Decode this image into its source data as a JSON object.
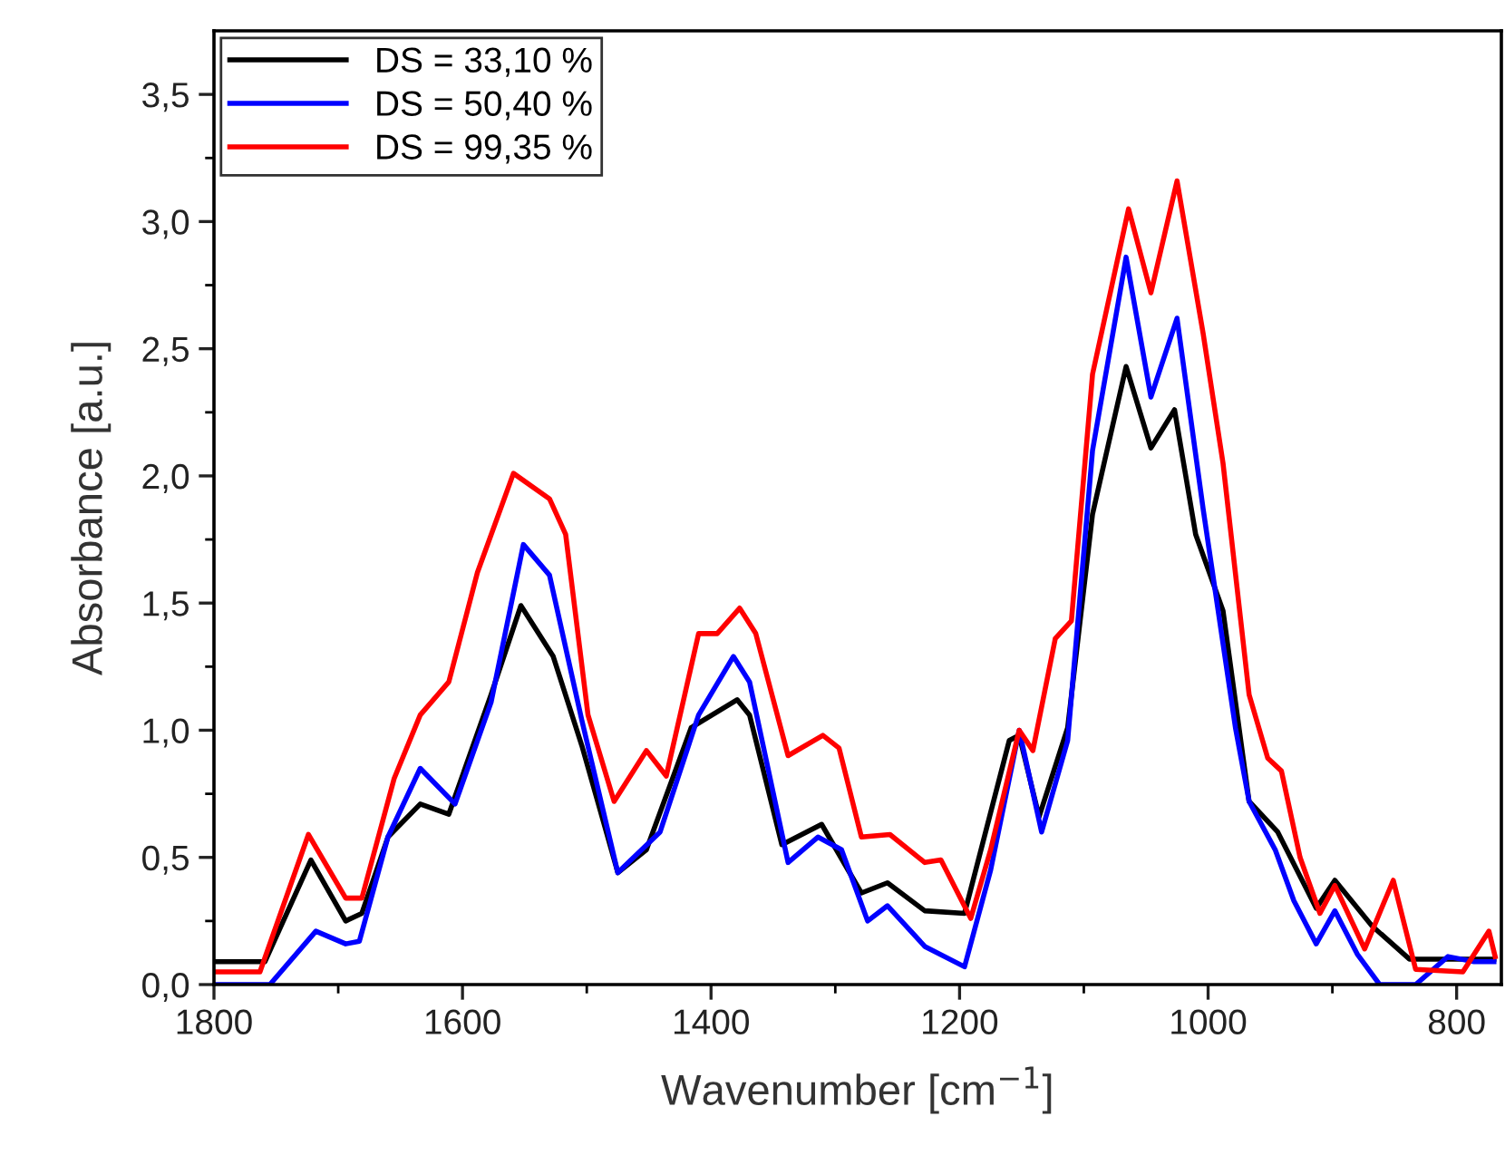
{
  "chart_data": {
    "type": "line",
    "xlabel": "Wavenumber [cm$^{−1}$]",
    "ylabel": "Absorbance [a.u.]",
    "xlim": [
      1800,
      764
    ],
    "xticks": [
      1800,
      1600,
      1400,
      1200,
      1000,
      800
    ],
    "ylim": [
      0,
      3.75
    ],
    "yticks": [
      {
        "value": 0,
        "label": "0,0"
      },
      {
        "value": 0.5,
        "label": "0,5"
      },
      {
        "value": 1,
        "label": "1,0"
      },
      {
        "value": 1.5,
        "label": "1,5"
      },
      {
        "value": 2,
        "label": "2,0"
      },
      {
        "value": 2.5,
        "label": "2,5"
      },
      {
        "value": 3,
        "label": "3,0"
      },
      {
        "value": 3.5,
        "label": "3,5"
      }
    ],
    "grid": false,
    "legend": "top left",
    "marker": "none",
    "line_style": "solid",
    "series": [
      {
        "name": "DS = 33,10 %",
        "color": "#000000",
        "x": [
          1800,
          1759,
          1722,
          1694,
          1681,
          1660,
          1634,
          1611,
          1577,
          1553,
          1527,
          1504,
          1475,
          1452,
          1416,
          1379,
          1369,
          1343,
          1311,
          1279,
          1258,
          1228,
          1196,
          1160,
          1152,
          1136,
          1113,
          1093,
          1066,
          1046,
          1027,
          1010,
          988,
          967,
          944,
          913,
          898,
          868,
          838,
          812,
          770
        ],
        "values": [
          0.09,
          0.09,
          0.49,
          0.25,
          0.28,
          0.58,
          0.71,
          0.67,
          1.14,
          1.49,
          1.29,
          0.94,
          0.44,
          0.53,
          1.01,
          1.12,
          1.06,
          0.55,
          0.63,
          0.36,
          0.4,
          0.29,
          0.28,
          0.96,
          0.98,
          0.66,
          1.01,
          1.85,
          2.43,
          2.11,
          2.26,
          1.77,
          1.47,
          0.72,
          0.6,
          0.3,
          0.41,
          0.23,
          0.1,
          0.1,
          0.1
        ]
      },
      {
        "name": "DS = 50,40 %",
        "color": "#0000ff",
        "x": [
          1800,
          1755,
          1718,
          1694,
          1683,
          1660,
          1634,
          1606,
          1577,
          1551,
          1530,
          1504,
          1475,
          1441,
          1410,
          1382,
          1369,
          1338,
          1314,
          1295,
          1274,
          1258,
          1228,
          1196,
          1175,
          1152,
          1134,
          1113,
          1093,
          1066,
          1046,
          1025,
          1004,
          978,
          967,
          946,
          931,
          913,
          898,
          880,
          862,
          833,
          807,
          786,
          770
        ],
        "values": [
          0.0,
          0.0,
          0.21,
          0.16,
          0.17,
          0.58,
          0.85,
          0.71,
          1.11,
          1.73,
          1.61,
          1.04,
          0.44,
          0.6,
          1.06,
          1.29,
          1.19,
          0.48,
          0.58,
          0.53,
          0.25,
          0.31,
          0.15,
          0.07,
          0.45,
          1.0,
          0.6,
          0.96,
          2.1,
          2.86,
          2.31,
          2.62,
          1.87,
          1.01,
          0.72,
          0.53,
          0.33,
          0.16,
          0.29,
          0.12,
          0.0,
          0.0,
          0.11,
          0.09,
          0.09
        ]
      },
      {
        "name": "DS = 99,35 %",
        "color": "#ff0000",
        "x": [
          1800,
          1763,
          1724,
          1694,
          1681,
          1655,
          1634,
          1611,
          1588,
          1559,
          1530,
          1517,
          1499,
          1478,
          1452,
          1436,
          1410,
          1395,
          1377,
          1364,
          1338,
          1310,
          1297,
          1279,
          1256,
          1228,
          1215,
          1191,
          1175,
          1152,
          1141,
          1123,
          1110,
          1093,
          1064,
          1046,
          1025,
          1004,
          988,
          967,
          952,
          941,
          926,
          910,
          898,
          874,
          851,
          833,
          795,
          774,
          769
        ],
        "values": [
          0.05,
          0.05,
          0.59,
          0.34,
          0.34,
          0.81,
          1.06,
          1.19,
          1.62,
          2.01,
          1.91,
          1.77,
          1.06,
          0.72,
          0.92,
          0.82,
          1.38,
          1.38,
          1.48,
          1.38,
          0.9,
          0.98,
          0.93,
          0.58,
          0.59,
          0.48,
          0.49,
          0.26,
          0.53,
          1.0,
          0.92,
          1.36,
          1.43,
          2.4,
          3.05,
          2.72,
          3.16,
          2.56,
          2.05,
          1.14,
          0.89,
          0.84,
          0.5,
          0.28,
          0.39,
          0.14,
          0.41,
          0.06,
          0.05,
          0.21,
          0.11
        ]
      }
    ]
  }
}
